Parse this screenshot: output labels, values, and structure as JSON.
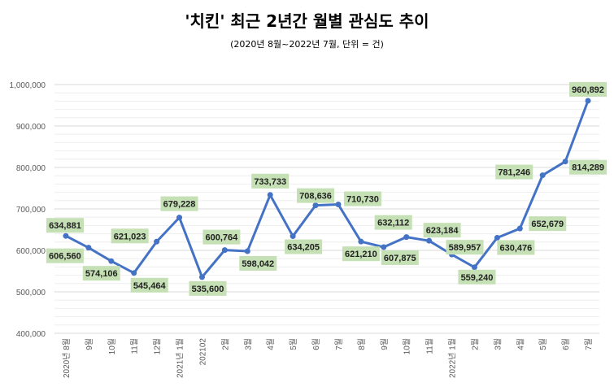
{
  "chart_data": {
    "type": "line",
    "title": "'치킨' 최근 2년간 월별 관심도 추이",
    "subtitle": "(2020년 8월~2022년 7월, 단위 = 건)",
    "xlabel": "",
    "ylabel": "",
    "ylim": [
      400000,
      1000000
    ],
    "yticks": [
      400000,
      500000,
      600000,
      700000,
      800000,
      900000,
      1000000
    ],
    "ytick_labels": [
      "400,000",
      "500,000",
      "600,000",
      "700,000",
      "800,000",
      "900,000",
      "1,000,000"
    ],
    "grid": true,
    "legend": "none",
    "categories": [
      "2020년 8월",
      "9월",
      "10월",
      "11월",
      "12월",
      "2021년 1월",
      "202102",
      "2월",
      "3월",
      "4월",
      "5월",
      "6월",
      "7월",
      "8월",
      "9월",
      "10월",
      "11월",
      "2022년 1월",
      "2월",
      "3월",
      "4월",
      "5월",
      "6월",
      "7월"
    ],
    "series": [
      {
        "values": [
          634881,
          606560,
          574106,
          545464,
          621023,
          679228,
          535600,
          600764,
          598042,
          733733,
          634205,
          708636,
          710730,
          621210,
          607875,
          632112,
          623184,
          589957,
          559240,
          630476,
          652679,
          781246,
          814289,
          960892
        ],
        "labels": [
          "634,881",
          "606,560",
          "574,106",
          "545,464",
          "621,023",
          "679,228",
          "535,600",
          "600,764",
          "598,042",
          "733,733",
          "634,205",
          "708,636",
          "710,730",
          "621,210",
          "607,875",
          "632,112",
          "623,184",
          "589,957",
          "559,240",
          "630,476",
          "652,679",
          "781,246",
          "814,289",
          "960,892"
        ]
      }
    ],
    "colors": {
      "line": "#4472c4",
      "label_bg": "#c5e0b4",
      "grid": "#d9d9d9",
      "minor_grid": "#eeeeee"
    }
  }
}
